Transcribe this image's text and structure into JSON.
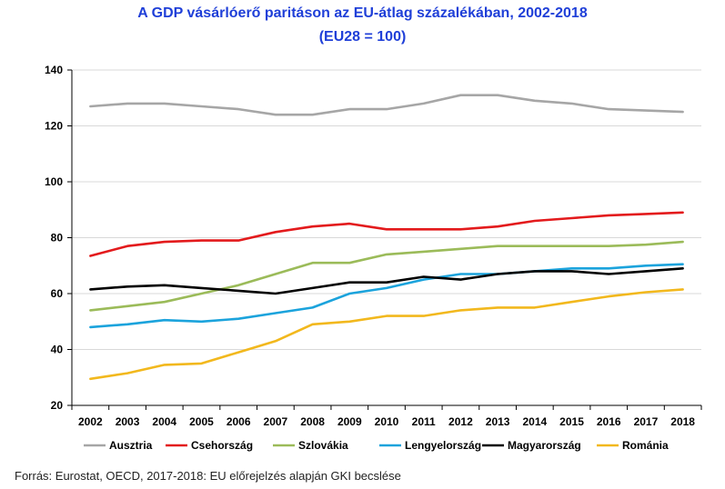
{
  "title_line1": "A GDP vásárlóerő paritáson az EU-átlag százalékában, 2002-2018",
  "title_line2": "(EU28 = 100)",
  "source": "Forrás: Eurostat, OECD, 2017-2018: EU előrejelzés alapján GKI becslése",
  "chart_data": {
    "type": "line",
    "title": "A GDP vásárlóerő paritáson az EU-átlag százalékában, 2002-2018",
    "subtitle": "(EU28 = 100)",
    "xlabel": "",
    "ylabel": "",
    "categories": [
      "2002",
      "2003",
      "2004",
      "2005",
      "2006",
      "2007",
      "2008",
      "2009",
      "2010",
      "2011",
      "2012",
      "2013",
      "2014",
      "2015",
      "2016",
      "2017",
      "2018"
    ],
    "ylim": [
      20,
      140
    ],
    "yticks": [
      20,
      40,
      60,
      80,
      100,
      120,
      140
    ],
    "grid": true,
    "legend_position": "bottom",
    "series": [
      {
        "name": "Ausztria",
        "color": "#a6a6a6",
        "values": [
          127,
          128,
          128,
          127,
          126,
          124,
          124,
          126,
          126,
          128,
          131,
          131,
          129,
          128,
          126,
          125.5,
          125
        ]
      },
      {
        "name": "Csehország",
        "color": "#e31a1c",
        "values": [
          73.5,
          77,
          78.5,
          79,
          79,
          82,
          84,
          85,
          83,
          83,
          83,
          84,
          86,
          87,
          88,
          88.5,
          89
        ]
      },
      {
        "name": "Szlovákia",
        "color": "#9bbb59",
        "values": [
          54,
          55.5,
          57,
          60,
          63,
          67,
          71,
          71,
          74,
          75,
          76,
          77,
          77,
          77,
          77,
          77.5,
          78.5
        ]
      },
      {
        "name": "Lengyelország",
        "color": "#1ba3dc",
        "values": [
          48,
          49,
          50.5,
          50,
          51,
          53,
          55,
          60,
          62,
          65,
          67,
          67,
          68,
          69,
          69,
          70,
          70.5
        ]
      },
      {
        "name": "Magyarország",
        "color": "#000000",
        "values": [
          61.5,
          62.5,
          63,
          62,
          61,
          60,
          62,
          64,
          64,
          66,
          65,
          67,
          68,
          68,
          67,
          68,
          69
        ]
      },
      {
        "name": "Románia",
        "color": "#f2b81d",
        "values": [
          29.5,
          31.5,
          34.5,
          35,
          39,
          43,
          49,
          50,
          52,
          52,
          54,
          55,
          55,
          57,
          59,
          60.5,
          61.5
        ]
      }
    ]
  }
}
